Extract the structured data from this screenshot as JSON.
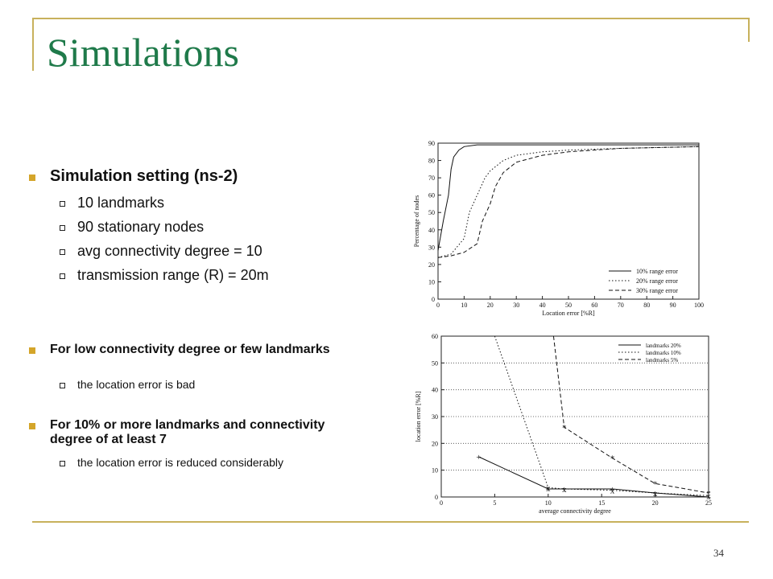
{
  "slide": {
    "title": "Simulations",
    "page_number": "34",
    "accent_color": "#c8b15c",
    "title_color": "#1f7a4a",
    "bullet_color": "#d4a52a"
  },
  "content": {
    "section1": {
      "heading": "Simulation setting (ns-2)",
      "items": [
        "10 landmarks",
        "90 stationary nodes",
        "avg connectivity degree = 10",
        "transmission range (R) = 20m"
      ]
    },
    "section2": {
      "heading": "For low connectivity degree or few landmarks",
      "items": [
        "the location error is bad"
      ]
    },
    "section3": {
      "heading": "For 10% or more landmarks and connectivity degree of at least 7",
      "items": [
        "the location error is reduced considerably"
      ]
    }
  },
  "chart_data": [
    {
      "type": "line",
      "xlabel": "Location error [%R]",
      "ylabel": "Percentage of nodes",
      "xlim": [
        0,
        100
      ],
      "ylim": [
        0,
        90
      ],
      "xticks": [
        0,
        10,
        20,
        30,
        40,
        50,
        60,
        70,
        80,
        90,
        100
      ],
      "yticks": [
        0,
        10,
        20,
        30,
        40,
        50,
        60,
        70,
        80,
        90
      ],
      "legend_position": "bottom-right",
      "series": [
        {
          "name": "10% range error",
          "style": "solid",
          "x": [
            0,
            2,
            4,
            5,
            6,
            8,
            10,
            15,
            20,
            30,
            50,
            100
          ],
          "y": [
            28,
            45,
            60,
            75,
            82,
            86,
            88,
            89,
            89,
            89,
            89,
            89
          ]
        },
        {
          "name": "20% range error",
          "style": "dotted",
          "x": [
            0,
            5,
            10,
            12,
            15,
            18,
            20,
            25,
            30,
            40,
            50,
            70,
            100
          ],
          "y": [
            24,
            26,
            35,
            50,
            60,
            70,
            74,
            80,
            83,
            85,
            86,
            87,
            88
          ]
        },
        {
          "name": "30% range error",
          "style": "dashed",
          "x": [
            0,
            5,
            10,
            15,
            17,
            20,
            22,
            25,
            30,
            40,
            50,
            70,
            100
          ],
          "y": [
            24,
            25,
            27,
            32,
            45,
            55,
            65,
            73,
            79,
            83,
            85,
            87,
            88
          ]
        }
      ]
    },
    {
      "type": "line",
      "xlabel": "average connectivity degree",
      "ylabel": "location error [%R]",
      "xlim": [
        0,
        25
      ],
      "ylim": [
        0,
        60
      ],
      "xticks": [
        0,
        5,
        10,
        15,
        20,
        25
      ],
      "yticks": [
        0,
        10,
        20,
        30,
        40,
        50,
        60
      ],
      "grid": true,
      "legend_position": "top-right",
      "series": [
        {
          "name": "landmarks 20%",
          "style": "solid",
          "marker": "+",
          "x": [
            3.5,
            10,
            11.5,
            16,
            20,
            25
          ],
          "y": [
            15,
            3,
            3,
            3,
            1.5,
            0
          ]
        },
        {
          "name": "landmarks 10%",
          "style": "dotted",
          "marker": "x",
          "x": [
            5,
            10,
            11.5,
            16,
            20,
            25
          ],
          "y": [
            60,
            3.5,
            3,
            2.5,
            1.5,
            0.5
          ]
        },
        {
          "name": "landmarks 5%",
          "style": "dashed",
          "marker": "*",
          "x": [
            10.5,
            11.5,
            16,
            20,
            25
          ],
          "y": [
            60,
            26,
            14.5,
            5,
            1.5
          ]
        }
      ]
    }
  ]
}
